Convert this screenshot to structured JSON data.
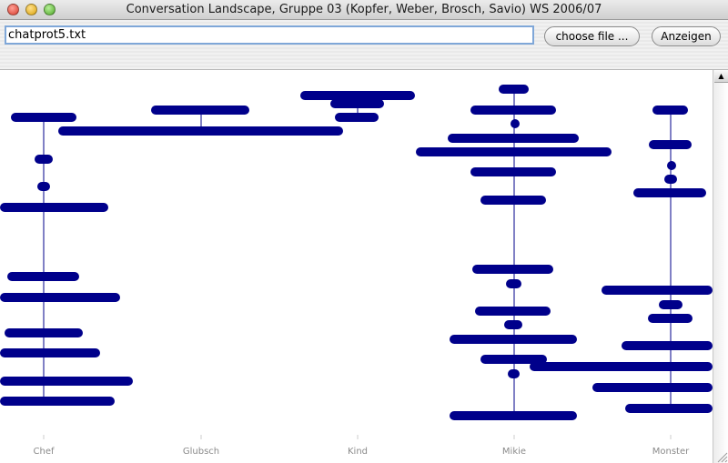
{
  "window": {
    "title": "Conversation Landscape, Gruppe 03 (Kopfer, Weber, Brosch, Savio) WS 2006/07"
  },
  "toolbar": {
    "file_value": "chatprot5.txt",
    "choose_label": "choose file ...",
    "show_label": "Anzeigen"
  },
  "colors": {
    "bar": "#00008b",
    "axis_label": "#8a8a8a",
    "canvas": "#ffffff"
  },
  "participants": [
    {
      "name": "Chef",
      "line": [
        129,
        441
      ],
      "bars": [
        [
          12,
          84,
          129
        ],
        [
          38,
          58,
          175
        ],
        [
          41,
          55,
          205
        ],
        [
          0,
          119,
          228
        ],
        [
          8,
          87,
          304
        ],
        [
          0,
          132,
          327
        ],
        [
          5,
          91,
          366
        ],
        [
          0,
          110,
          388
        ],
        [
          0,
          146,
          419
        ],
        [
          0,
          126,
          441
        ]
      ]
    },
    {
      "name": "Glubsch",
      "line": [
        121,
        144
      ],
      "bars": [
        [
          166,
          274,
          121
        ],
        [
          64,
          377,
          144
        ]
      ]
    },
    {
      "name": "Kind",
      "line": [
        105,
        133
      ],
      "bars": [
        [
          330,
          456,
          105
        ],
        [
          363,
          422,
          114
        ],
        [
          368,
          416,
          129
        ]
      ]
    },
    {
      "name": "Mikie",
      "line": [
        98,
        457
      ],
      "bars": [
        [
          548,
          581,
          98
        ],
        [
          517,
          611,
          121
        ],
        [
          561,
          569,
          136
        ],
        [
          492,
          636,
          152
        ],
        [
          457,
          672,
          167
        ],
        [
          517,
          611,
          189
        ],
        [
          528,
          600,
          220
        ],
        [
          519,
          608,
          296
        ],
        [
          556,
          573,
          312
        ],
        [
          522,
          605,
          342
        ],
        [
          554,
          574,
          357
        ],
        [
          494,
          634,
          373
        ],
        [
          528,
          601,
          395
        ],
        [
          558,
          571,
          411
        ],
        [
          494,
          634,
          457
        ]
      ]
    },
    {
      "name": "Monster",
      "line": [
        121,
        449
      ],
      "bars": [
        [
          717,
          756,
          121
        ],
        [
          713,
          760,
          159
        ],
        [
          733,
          740,
          182
        ],
        [
          730,
          744,
          197
        ],
        [
          696,
          776,
          212
        ],
        [
          661,
          783,
          319
        ],
        [
          724,
          750,
          335
        ],
        [
          712,
          761,
          350
        ],
        [
          683,
          783,
          380
        ],
        [
          582,
          783,
          403
        ],
        [
          651,
          783,
          426
        ],
        [
          687,
          783,
          449
        ]
      ]
    }
  ],
  "axis_labels": [
    "Chef",
    "Glubsch",
    "Kind",
    "Mikie",
    "Monster"
  ]
}
